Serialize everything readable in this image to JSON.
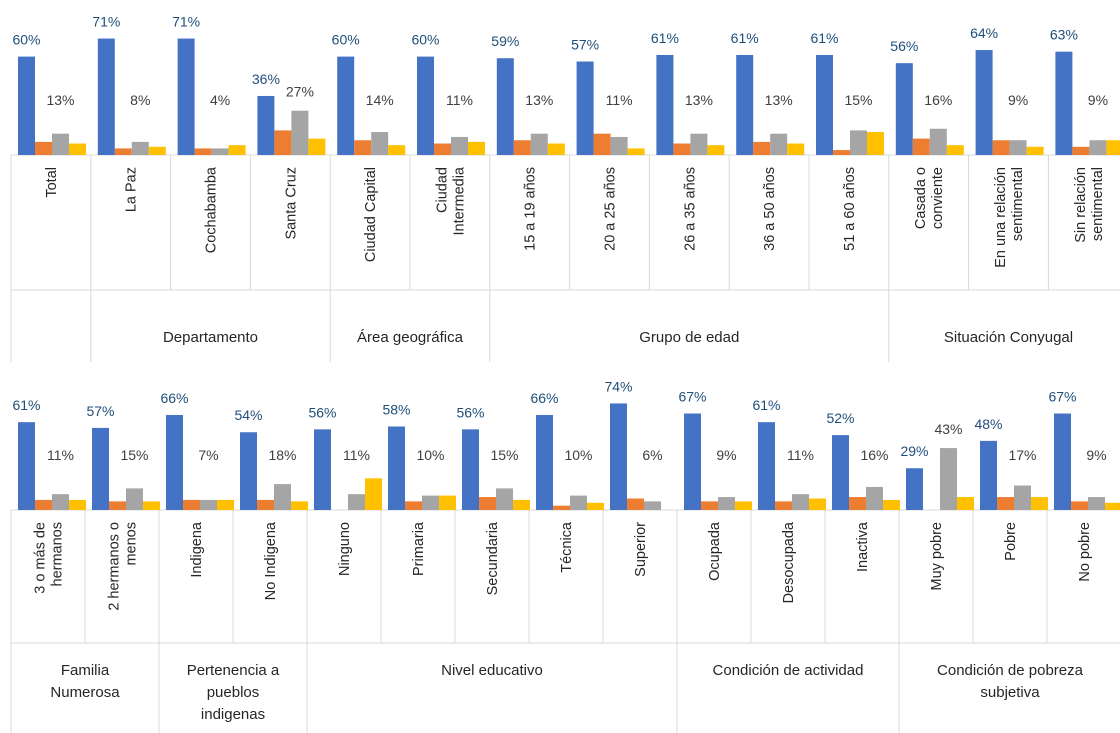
{
  "chart_data": [
    {
      "type": "bar",
      "title": "",
      "xlabel": "",
      "ylabel": "",
      "ylim": [
        0,
        80
      ],
      "grid": false,
      "legend": "none",
      "series_colors": [
        "#4472c4",
        "#ed7d31",
        "#a5a5a5",
        "#ffc000"
      ],
      "categories": [
        {
          "label": [
            "Total"
          ],
          "group": ""
        },
        {
          "label": [
            "La Paz"
          ],
          "group": "Departamento"
        },
        {
          "label": [
            "Cochabamba"
          ],
          "group": "Departamento"
        },
        {
          "label": [
            "Santa Cruz"
          ],
          "group": "Departamento"
        },
        {
          "label": [
            "Ciudad Capital"
          ],
          "group": "Área geográfica"
        },
        {
          "label": [
            "Ciudad",
            "Intermedia"
          ],
          "group": "Área geográfica"
        },
        {
          "label": [
            "15 a 19 años"
          ],
          "group": "Grupo de edad"
        },
        {
          "label": [
            "20 a 25 años"
          ],
          "group": "Grupo de edad"
        },
        {
          "label": [
            "26 a 35 años"
          ],
          "group": "Grupo de edad"
        },
        {
          "label": [
            "36 a 50 años"
          ],
          "group": "Grupo de edad"
        },
        {
          "label": [
            "51 a 60 años"
          ],
          "group": "Grupo de edad"
        },
        {
          "label": [
            "Casada o",
            "conviente"
          ],
          "group": "Situación Conyugal"
        },
        {
          "label": [
            "En una relación",
            "sentimental"
          ],
          "group": "Situación Conyugal"
        },
        {
          "label": [
            "Sin relación",
            "sentimental"
          ],
          "group": "Situación Conyugal"
        }
      ],
      "groups": [
        {
          "label": [
            ""
          ],
          "span": 1
        },
        {
          "label": [
            "Departamento"
          ],
          "span": 3
        },
        {
          "label": [
            "Área geográfica"
          ],
          "span": 2
        },
        {
          "label": [
            "Grupo de edad"
          ],
          "span": 5
        },
        {
          "label": [
            "Situación Conyugal"
          ],
          "span": 3
        }
      ],
      "series": [
        {
          "values": [
            60,
            71,
            71,
            36,
            60,
            60,
            59,
            57,
            61,
            61,
            61,
            56,
            64,
            63
          ]
        },
        {
          "values": [
            8,
            4,
            4,
            15,
            9,
            7,
            9,
            13,
            7,
            8,
            3,
            10,
            9,
            5
          ]
        },
        {
          "values": [
            13,
            8,
            4,
            27,
            14,
            11,
            13,
            11,
            13,
            13,
            15,
            16,
            9,
            9
          ]
        },
        {
          "values": [
            7,
            5,
            6,
            10,
            6,
            8,
            7,
            4,
            6,
            7,
            14,
            6,
            5,
            9
          ]
        }
      ],
      "labels": [
        [
          "60%",
          "71%",
          "71%",
          "36%",
          "60%",
          "60%",
          "59%",
          "57%",
          "61%",
          "61%",
          "61%",
          "56%",
          "64%",
          "63%"
        ],
        [
          "13%",
          "8%",
          "4%",
          "27%",
          "14%",
          "11%",
          "13%",
          "11%",
          "13%",
          "13%",
          "15%",
          "16%",
          "9%",
          "9%"
        ]
      ]
    },
    {
      "type": "bar",
      "title": "",
      "xlabel": "",
      "ylabel": "",
      "ylim": [
        0,
        80
      ],
      "grid": false,
      "legend": "none",
      "series_colors": [
        "#4472c4",
        "#ed7d31",
        "#a5a5a5",
        "#ffc000"
      ],
      "categories": [
        {
          "label": [
            "3 o más de",
            "hermanos"
          ],
          "group": "Familia Numerosa"
        },
        {
          "label": [
            "2 hermanos o",
            "menos"
          ],
          "group": "Familia Numerosa"
        },
        {
          "label": [
            "Indigena"
          ],
          "group": "Pertenencia a pueblos indigenas"
        },
        {
          "label": [
            "No Indigena"
          ],
          "group": "Pertenencia a pueblos indigenas"
        },
        {
          "label": [
            "Ninguno"
          ],
          "group": "Nivel educativo"
        },
        {
          "label": [
            "Primaria"
          ],
          "group": "Nivel educativo"
        },
        {
          "label": [
            "Secundaria"
          ],
          "group": "Nivel educativo"
        },
        {
          "label": [
            "Técnica"
          ],
          "group": "Nivel educativo"
        },
        {
          "label": [
            "Superior"
          ],
          "group": "Nivel educativo"
        },
        {
          "label": [
            "Ocupada"
          ],
          "group": "Condición de actividad"
        },
        {
          "label": [
            "Desocupada"
          ],
          "group": "Condición de actividad"
        },
        {
          "label": [
            "Inactiva"
          ],
          "group": "Condición de actividad"
        },
        {
          "label": [
            "Muy pobre"
          ],
          "group": "Condición de pobreza subjetiva"
        },
        {
          "label": [
            "Pobre"
          ],
          "group": "Condición de pobreza subjetiva"
        },
        {
          "label": [
            "No pobre"
          ],
          "group": "Condición de pobreza subjetiva"
        }
      ],
      "groups": [
        {
          "label": [
            "Familia",
            "Numerosa"
          ],
          "span": 2
        },
        {
          "label": [
            "Pertenencia a",
            "pueblos",
            "indigenas"
          ],
          "span": 2
        },
        {
          "label": [
            "Nivel educativo"
          ],
          "span": 5
        },
        {
          "label": [
            "Condición de actividad"
          ],
          "span": 3
        },
        {
          "label": [
            "Condición de pobreza",
            "subjetiva"
          ],
          "span": 3
        }
      ],
      "series": [
        {
          "values": [
            61,
            57,
            66,
            54,
            56,
            58,
            56,
            66,
            74,
            67,
            61,
            52,
            29,
            48,
            67
          ]
        },
        {
          "values": [
            7,
            6,
            7,
            7,
            0,
            6,
            9,
            3,
            8,
            6,
            6,
            9,
            0,
            9,
            6
          ]
        },
        {
          "values": [
            11,
            15,
            7,
            18,
            11,
            10,
            15,
            10,
            6,
            9,
            11,
            16,
            43,
            17,
            9
          ]
        },
        {
          "values": [
            7,
            6,
            7,
            6,
            22,
            10,
            7,
            5,
            0,
            6,
            8,
            7,
            9,
            9,
            5
          ]
        }
      ],
      "labels": [
        [
          "61%",
          "57%",
          "66%",
          "54%",
          "56%",
          "58%",
          "56%",
          "66%",
          "74%",
          "67%",
          "61%",
          "52%",
          "29%",
          "48%",
          "67%"
        ],
        [
          "11%",
          "15%",
          "7%",
          "18%",
          "11%",
          "10%",
          "15%",
          "10%",
          "6%",
          "9%",
          "11%",
          "16%",
          "43%",
          "17%",
          "9%"
        ]
      ]
    }
  ]
}
